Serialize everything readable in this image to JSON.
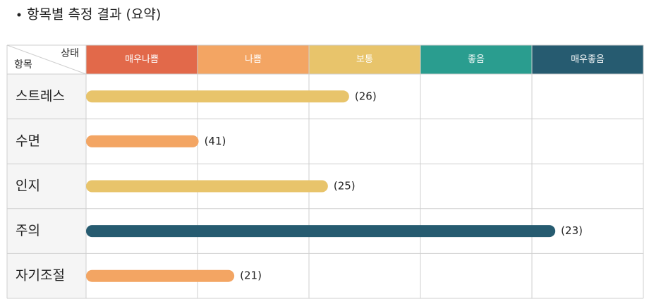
{
  "title": "항목별 측정 결과 (요약)",
  "table": {
    "corner": {
      "column_label": "상태",
      "row_label": "항목"
    },
    "columns": [
      {
        "label": "매우나쁨",
        "color": "#e2694a"
      },
      {
        "label": "나쁨",
        "color": "#f3a563"
      },
      {
        "label": "보통",
        "color": "#e8c46b"
      },
      {
        "label": "좋음",
        "color": "#2a9d8f"
      },
      {
        "label": "매우좋음",
        "color": "#265b70"
      }
    ],
    "level_range": [
      0,
      5
    ],
    "rows": [
      {
        "label": "스트레스",
        "score": "(26)",
        "level": 2.36,
        "color": "#e8c46b"
      },
      {
        "label": "수면",
        "score": "(41)",
        "level": 1.01,
        "color": "#f3a563"
      },
      {
        "label": "인지",
        "score": "(25)",
        "level": 2.17,
        "color": "#e8c46b"
      },
      {
        "label": "주의",
        "score": "(23)",
        "level": 4.21,
        "color": "#265b70"
      },
      {
        "label": "자기조절",
        "score": "(21)",
        "level": 1.33,
        "color": "#f3a563"
      }
    ]
  }
}
